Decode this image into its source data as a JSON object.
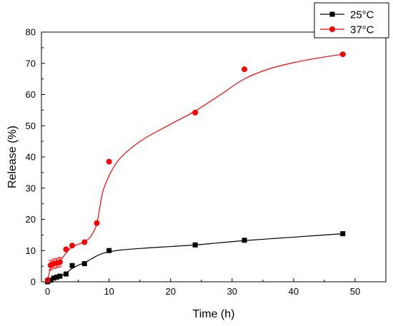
{
  "chart_data": {
    "type": "scatter",
    "xlabel": "Time (h)",
    "ylabel": "Release (%)",
    "xlim": [
      -1,
      55
    ],
    "ylim": [
      0,
      80
    ],
    "xticks": [
      0,
      10,
      20,
      30,
      40,
      50
    ],
    "yticks": [
      0,
      10,
      20,
      30,
      40,
      50,
      60,
      70,
      80
    ],
    "x_tick_labels": [
      "0",
      "10",
      "20",
      "30",
      "40",
      "50"
    ],
    "y_tick_labels": [
      "0",
      "10",
      "20",
      "30",
      "40",
      "50",
      "60",
      "70",
      "80"
    ],
    "grid": false,
    "legend_position": "top-right",
    "series": [
      {
        "name": "25°C",
        "color": "#000000",
        "marker": "square",
        "points": [
          {
            "x": 0,
            "y": 0
          },
          {
            "x": 0.5,
            "y": 0.5
          },
          {
            "x": 1,
            "y": 1.2
          },
          {
            "x": 1.5,
            "y": 1.5
          },
          {
            "x": 2,
            "y": 1.8
          },
          {
            "x": 3,
            "y": 2.5
          },
          {
            "x": 4,
            "y": 5.2
          },
          {
            "x": 6,
            "y": 5.8
          },
          {
            "x": 10,
            "y": 10
          },
          {
            "x": 24,
            "y": 11.8
          },
          {
            "x": 32,
            "y": 13.3
          },
          {
            "x": 48,
            "y": 15.4
          }
        ],
        "fit_curve": [
          {
            "x": 0,
            "y": 0
          },
          {
            "x": 1,
            "y": 1.0
          },
          {
            "x": 2,
            "y": 1.7
          },
          {
            "x": 3,
            "y": 2.8
          },
          {
            "x": 4,
            "y": 4.3
          },
          {
            "x": 5,
            "y": 5.3
          },
          {
            "x": 6,
            "y": 6.1
          },
          {
            "x": 7,
            "y": 7.2
          },
          {
            "x": 8,
            "y": 8.3
          },
          {
            "x": 9,
            "y": 9.1
          },
          {
            "x": 10,
            "y": 9.6
          },
          {
            "x": 12,
            "y": 10.2
          },
          {
            "x": 16,
            "y": 10.8
          },
          {
            "x": 20,
            "y": 11.3
          },
          {
            "x": 24,
            "y": 11.8
          },
          {
            "x": 28,
            "y": 12.5
          },
          {
            "x": 32,
            "y": 13.2
          },
          {
            "x": 40,
            "y": 14.3
          },
          {
            "x": 48,
            "y": 15.4
          }
        ]
      },
      {
        "name": "37°C",
        "color": "#ff0000",
        "marker": "circle",
        "points": [
          {
            "x": 0,
            "y": 0.5
          },
          {
            "x": 0.5,
            "y": 5.3,
            "err": 1.5
          },
          {
            "x": 1,
            "y": 5.8,
            "err": 1.5
          },
          {
            "x": 1.5,
            "y": 6.0,
            "err": 1.5
          },
          {
            "x": 2,
            "y": 6.3,
            "err": 1.5
          },
          {
            "x": 3,
            "y": 10.4
          },
          {
            "x": 4,
            "y": 11.6
          },
          {
            "x": 6,
            "y": 12.7
          },
          {
            "x": 8,
            "y": 18.8
          },
          {
            "x": 10,
            "y": 38.5
          },
          {
            "x": 24,
            "y": 54.2
          },
          {
            "x": 32,
            "y": 68.1
          },
          {
            "x": 48,
            "y": 72.9
          }
        ],
        "fit_curve": [
          {
            "x": 0,
            "y": 0.5
          },
          {
            "x": 0.5,
            "y": 4.5
          },
          {
            "x": 1,
            "y": 5.6
          },
          {
            "x": 2,
            "y": 6.6
          },
          {
            "x": 3,
            "y": 9.2
          },
          {
            "x": 4,
            "y": 11.2
          },
          {
            "x": 5,
            "y": 12.0
          },
          {
            "x": 6,
            "y": 12.8
          },
          {
            "x": 7,
            "y": 14.5
          },
          {
            "x": 8,
            "y": 18.5
          },
          {
            "x": 8.5,
            "y": 24
          },
          {
            "x": 9,
            "y": 29
          },
          {
            "x": 10,
            "y": 34
          },
          {
            "x": 11,
            "y": 37.5
          },
          {
            "x": 12,
            "y": 40
          },
          {
            "x": 14,
            "y": 43.5
          },
          {
            "x": 16,
            "y": 46.2
          },
          {
            "x": 20,
            "y": 50.5
          },
          {
            "x": 24,
            "y": 54.7
          },
          {
            "x": 28,
            "y": 59.8
          },
          {
            "x": 32,
            "y": 65.0
          },
          {
            "x": 36,
            "y": 68.2
          },
          {
            "x": 40,
            "y": 70.2
          },
          {
            "x": 44,
            "y": 71.7
          },
          {
            "x": 48,
            "y": 72.9
          }
        ]
      }
    ]
  }
}
